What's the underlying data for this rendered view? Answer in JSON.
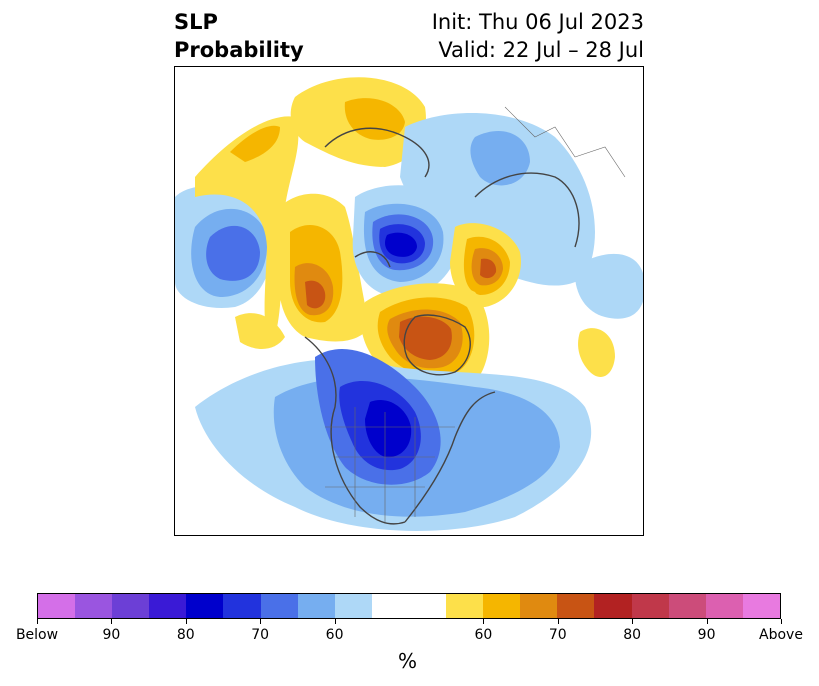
{
  "title": {
    "left_line1": "SLP",
    "left_line2": "Probability",
    "right_line1": "Init: Thu 06 Jul 2023",
    "right_line2": "Valid: 22 Jul – 28 Jul"
  },
  "colorbar": {
    "colors": [
      "#d46fe8",
      "#9a55e0",
      "#6c3fd6",
      "#3a1ad6",
      "#0000cc",
      "#2233dd",
      "#4a70e8",
      "#76aef0",
      "#aed8f7",
      "#ffffff",
      "#ffffff",
      "#fde04a",
      "#f5b600",
      "#e08a10",
      "#c85414",
      "#b22222",
      "#c0384a",
      "#cc4c7a",
      "#dc60b0",
      "#e87ae0"
    ],
    "labels": [
      "Below",
      "90",
      "80",
      "70",
      "60",
      "60",
      "70",
      "80",
      "90",
      "Above"
    ],
    "unit": "%"
  },
  "map": {
    "projection": "north-polar-stereographic",
    "field": "SLP probability",
    "colors": {
      "coast": "#444444",
      "light_blue": "#aed8f7",
      "mid_blue": "#76aef0",
      "blue": "#4a70e8",
      "dark_blue": "#2233dd",
      "navy": "#0000cc",
      "yellow": "#fde04a",
      "gold": "#f5b600",
      "orange": "#e08a10",
      "rust": "#c85414"
    }
  }
}
